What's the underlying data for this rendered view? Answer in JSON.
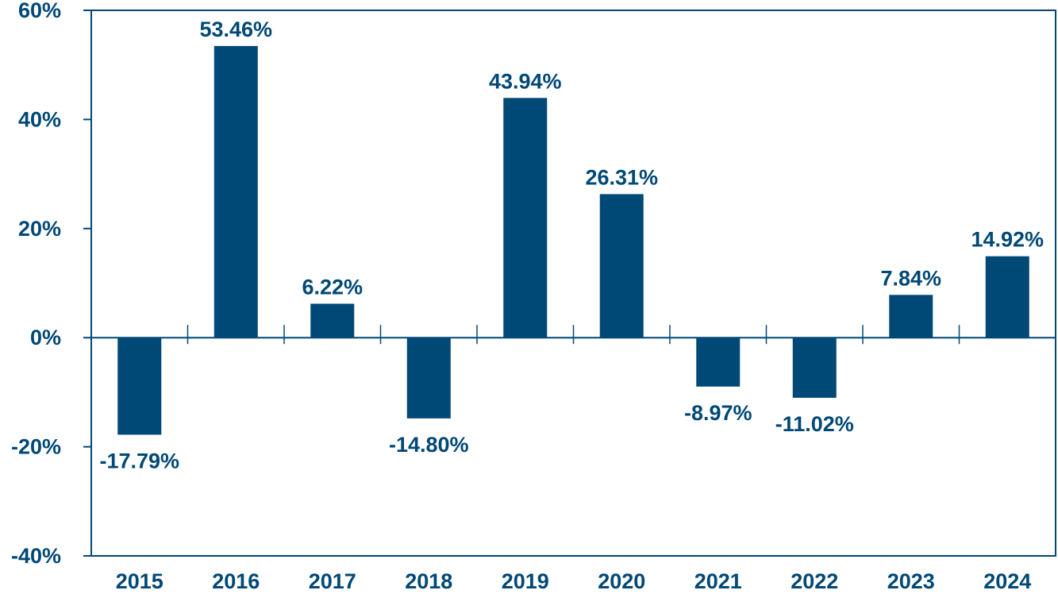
{
  "chart_data": {
    "type": "bar",
    "title": "",
    "xlabel": "",
    "ylabel": "",
    "categories": [
      "2015",
      "2016",
      "2017",
      "2018",
      "2019",
      "2020",
      "2021",
      "2022",
      "2023",
      "2024"
    ],
    "values": [
      -17.79,
      53.46,
      6.22,
      -14.8,
      43.94,
      26.31,
      -8.97,
      -11.02,
      7.84,
      14.92
    ],
    "data_labels": [
      "-17.79%",
      "53.46%",
      "6.22%",
      "-14.80%",
      "43.94%",
      "26.31%",
      "-8.97%",
      "-11.02%",
      "7.84%",
      "14.92%"
    ],
    "ylim": [
      -40,
      60
    ],
    "y_ticks": [
      60,
      40,
      20,
      0,
      -20,
      -40
    ],
    "y_tick_labels": [
      "60%",
      "40%",
      "20%",
      "0%",
      "-20%",
      "-40%"
    ],
    "grid": false,
    "legend": "none",
    "colors": {
      "bar": "#004876",
      "axis": "#004876",
      "text": "#004876"
    }
  }
}
